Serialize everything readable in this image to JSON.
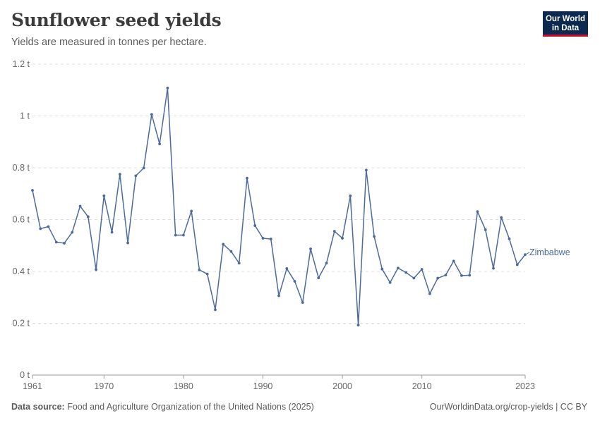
{
  "header": {
    "title": "Sunflower seed yields",
    "subtitle": "Yields are measured in tonnes per hectare."
  },
  "logo": {
    "line1": "Our World",
    "line2": "in Data"
  },
  "footer": {
    "source_label": "Data source:",
    "source_text": "Food and Agriculture Organization of the United Nations (2025)",
    "url_license": "OurWorldinData.org/crop-yields | CC BY"
  },
  "colors": {
    "series": "#4c6a9c",
    "grid": "#dddddd",
    "axis": "#999999"
  },
  "chart_data": {
    "type": "line",
    "title": "Sunflower seed yields",
    "subtitle": "Yields are measured in tonnes per hectare.",
    "xlabel": "",
    "ylabel": "",
    "xlim": [
      1961,
      2023
    ],
    "ylim": [
      0,
      1.2
    ],
    "x_ticks": [
      1961,
      1970,
      1980,
      1990,
      2000,
      2010,
      2023
    ],
    "y_ticks": [
      {
        "value": 0,
        "label": "0 t"
      },
      {
        "value": 0.2,
        "label": "0.2 t"
      },
      {
        "value": 0.4,
        "label": "0.4 t"
      },
      {
        "value": 0.6,
        "label": "0.6 t"
      },
      {
        "value": 0.8,
        "label": "0.8 t"
      },
      {
        "value": 1.0,
        "label": "1 t"
      },
      {
        "value": 1.2,
        "label": "1.2 t"
      }
    ],
    "grid": "horizontal dashed",
    "legend": "inline label at end of line",
    "series": [
      {
        "name": "Zimbabwe",
        "x": [
          1961,
          1962,
          1963,
          1964,
          1965,
          1966,
          1967,
          1968,
          1969,
          1970,
          1971,
          1972,
          1973,
          1974,
          1975,
          1976,
          1977,
          1978,
          1979,
          1980,
          1981,
          1982,
          1983,
          1984,
          1985,
          1986,
          1987,
          1988,
          1989,
          1990,
          1991,
          1992,
          1993,
          1994,
          1995,
          1996,
          1997,
          1998,
          1999,
          2000,
          2001,
          2002,
          2003,
          2004,
          2005,
          2006,
          2007,
          2008,
          2009,
          2010,
          2011,
          2012,
          2013,
          2014,
          2015,
          2016,
          2017,
          2018,
          2019,
          2020,
          2021,
          2022,
          2023
        ],
        "values": [
          0.713,
          0.565,
          0.573,
          0.513,
          0.509,
          0.551,
          0.652,
          0.611,
          0.407,
          0.692,
          0.551,
          0.775,
          0.51,
          0.769,
          0.799,
          1.006,
          0.892,
          1.108,
          0.54,
          0.54,
          0.633,
          0.406,
          0.39,
          0.252,
          0.505,
          0.477,
          0.432,
          0.76,
          0.577,
          0.528,
          0.525,
          0.306,
          0.411,
          0.362,
          0.28,
          0.487,
          0.375,
          0.432,
          0.555,
          0.528,
          0.692,
          0.193,
          0.791,
          0.535,
          0.409,
          0.357,
          0.413,
          0.396,
          0.374,
          0.408,
          0.314,
          0.374,
          0.386,
          0.44,
          0.384,
          0.385,
          0.631,
          0.561,
          0.412,
          0.608,
          0.526,
          0.426,
          0.465
        ]
      }
    ]
  }
}
